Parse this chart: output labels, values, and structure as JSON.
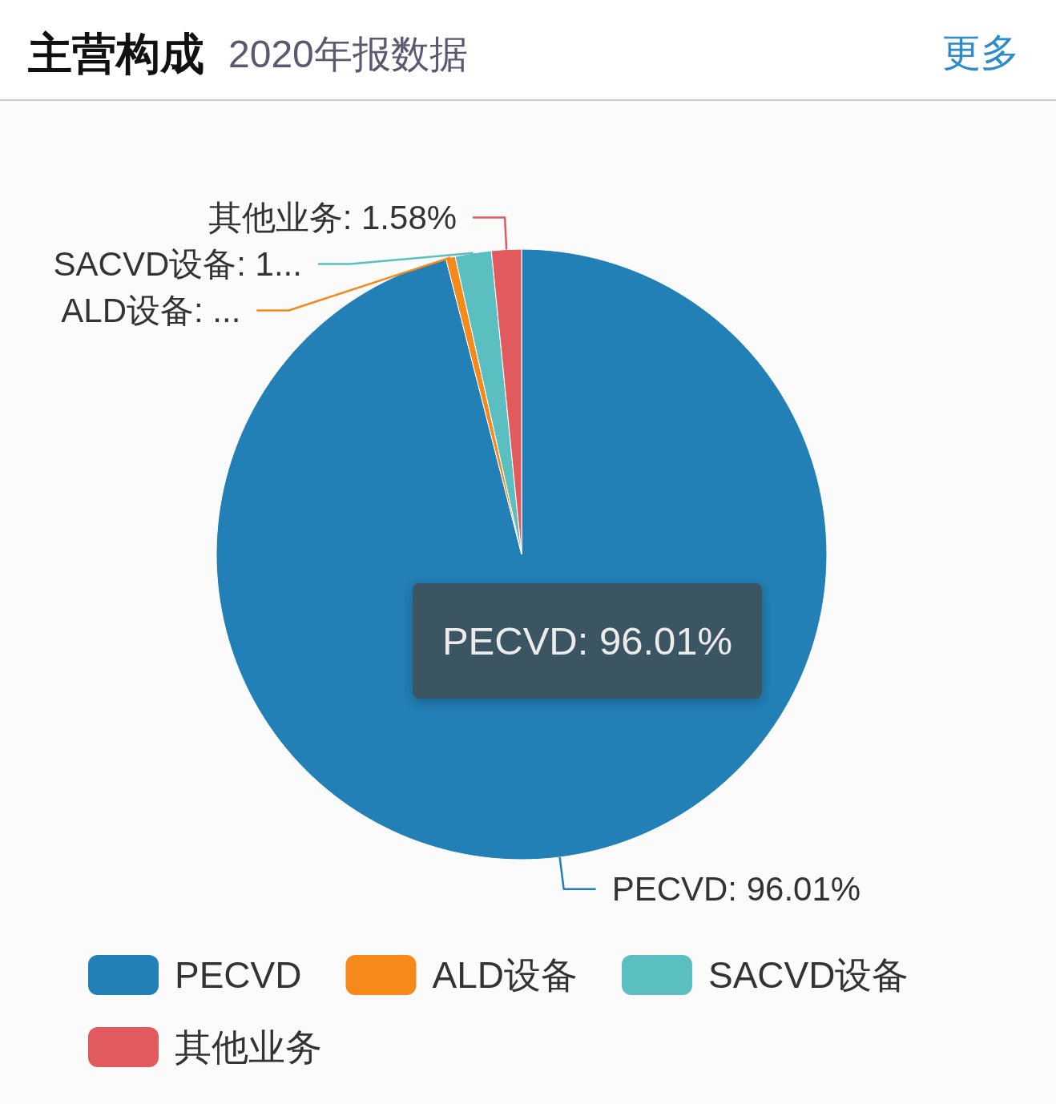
{
  "chart_data": {
    "type": "pie",
    "title": "主营构成",
    "subtitle": "2020年报数据",
    "categories": [
      "PECVD",
      "ALD设备",
      "SACVD设备",
      "其他业务"
    ],
    "values": [
      96.01,
      0.5,
      1.91,
      1.58
    ],
    "colors": [
      "#2380b6",
      "#f5891a",
      "#5bbfc1",
      "#e15b5e"
    ],
    "value_labels": [
      "PECVD: 96.01%",
      "ALD设备: ...",
      "SACVD设备: 1...",
      "其他业务: 1.58%"
    ],
    "annotations": [
      "PECVD: 96.01%",
      "更多"
    ],
    "legend": "bottom"
  }
}
